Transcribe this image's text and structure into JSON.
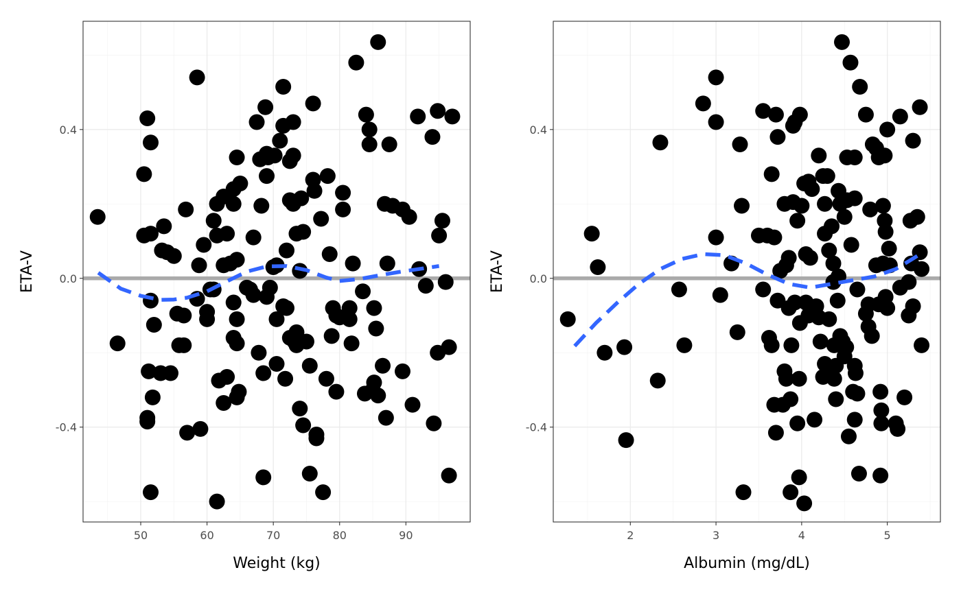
{
  "chart_data": [
    {
      "type": "scatter",
      "title": "",
      "xlabel": "Weight (kg)",
      "ylabel": "ETA-V",
      "xlim": [
        41.3,
        99.7
      ],
      "ylim": [
        -0.655,
        0.691
      ],
      "x_ticks": [
        50,
        60,
        70,
        80,
        90
      ],
      "x_tick_labels": [
        "50",
        "60",
        "70",
        "80",
        "90"
      ],
      "y_ticks": [
        0.4,
        0.0,
        -0.4
      ],
      "y_tick_labels": [
        "0.4",
        "0.0",
        "-0.4"
      ],
      "grid": true,
      "reference_line": {
        "y": 0,
        "color": "#aaaaaa"
      },
      "smooth_color": "#3366ff",
      "point_color": "#000000",
      "smooth": {
        "x": [
          43.6,
          47,
          50,
          53,
          55,
          57,
          60,
          63,
          66,
          69,
          72,
          75,
          78,
          80,
          83,
          86,
          89,
          92,
          95
        ],
        "y": [
          0.015,
          -0.028,
          -0.047,
          -0.058,
          -0.057,
          -0.052,
          -0.035,
          -0.008,
          0.018,
          0.032,
          0.033,
          0.022,
          0.002,
          -0.007,
          -0.002,
          0.008,
          0.017,
          0.025,
          0.033
        ]
      },
      "points": [
        [
          43.5,
          0.165
        ],
        [
          46.5,
          -0.175
        ],
        [
          50.5,
          0.115
        ],
        [
          50.5,
          0.28
        ],
        [
          51,
          0.43
        ],
        [
          51.5,
          0.365
        ],
        [
          51.5,
          0.12
        ],
        [
          51.5,
          -0.06
        ],
        [
          51.2,
          -0.25
        ],
        [
          51,
          -0.375
        ],
        [
          51,
          -0.385
        ],
        [
          51.8,
          -0.32
        ],
        [
          51.5,
          -0.575
        ],
        [
          52,
          -0.125
        ],
        [
          53,
          -0.255
        ],
        [
          53.2,
          0.075
        ],
        [
          53.5,
          0.14
        ],
        [
          54,
          0.07
        ],
        [
          54.5,
          -0.255
        ],
        [
          55,
          0.06
        ],
        [
          55.5,
          -0.095
        ],
        [
          55.8,
          -0.18
        ],
        [
          56.5,
          -0.1
        ],
        [
          56.5,
          -0.18
        ],
        [
          56.8,
          0.185
        ],
        [
          57,
          -0.415
        ],
        [
          58.5,
          -0.055
        ],
        [
          58.5,
          0.54
        ],
        [
          58.8,
          0.035
        ],
        [
          59,
          -0.405
        ],
        [
          59.5,
          0.09
        ],
        [
          60,
          -0.11
        ],
        [
          60,
          -0.09
        ],
        [
          60.5,
          -0.03
        ],
        [
          61,
          -0.03
        ],
        [
          61,
          0.155
        ],
        [
          61.5,
          0.115
        ],
        [
          61.5,
          0.2
        ],
        [
          61.5,
          -0.6
        ],
        [
          61.8,
          -0.275
        ],
        [
          62.5,
          0.035
        ],
        [
          62.5,
          0.22
        ],
        [
          62.5,
          -0.335
        ],
        [
          63,
          -0.265
        ],
        [
          63,
          0.12
        ],
        [
          63.5,
          0.04
        ],
        [
          64,
          0.24
        ],
        [
          64,
          0.2
        ],
        [
          64,
          -0.065
        ],
        [
          64,
          -0.16
        ],
        [
          64.5,
          -0.175
        ],
        [
          64.5,
          0.05
        ],
        [
          64.5,
          0.325
        ],
        [
          64.5,
          -0.11
        ],
        [
          64.5,
          -0.32
        ],
        [
          64.8,
          -0.305
        ],
        [
          65,
          0.255
        ],
        [
          66,
          -0.025
        ],
        [
          66.5,
          -0.03
        ],
        [
          67,
          0.11
        ],
        [
          67,
          -0.045
        ],
        [
          67.5,
          0.42
        ],
        [
          67.8,
          -0.2
        ],
        [
          68,
          0.32
        ],
        [
          68.2,
          0.195
        ],
        [
          68.5,
          -0.255
        ],
        [
          68.5,
          -0.535
        ],
        [
          68.8,
          0.46
        ],
        [
          69,
          0.335
        ],
        [
          69,
          0.275
        ],
        [
          69,
          -0.05
        ],
        [
          69.2,
          0.325
        ],
        [
          69.5,
          -0.025
        ],
        [
          70,
          0.03
        ],
        [
          70.2,
          0.33
        ],
        [
          70.5,
          0.035
        ],
        [
          70.5,
          -0.11
        ],
        [
          70.5,
          -0.23
        ],
        [
          71,
          0.37
        ],
        [
          71.5,
          0.41
        ],
        [
          71.5,
          0.515
        ],
        [
          71.5,
          -0.075
        ],
        [
          71.8,
          -0.27
        ],
        [
          72,
          0.075
        ],
        [
          72,
          -0.08
        ],
        [
          72.5,
          0.315
        ],
        [
          72.5,
          0.21
        ],
        [
          72.5,
          -0.16
        ],
        [
          73,
          0.2
        ],
        [
          73,
          0.33
        ],
        [
          73,
          0.42
        ],
        [
          73.2,
          -0.17
        ],
        [
          73.5,
          0.12
        ],
        [
          73.5,
          -0.18
        ],
        [
          73.5,
          -0.145
        ],
        [
          74,
          0.02
        ],
        [
          74,
          -0.35
        ],
        [
          74.2,
          0.215
        ],
        [
          74.5,
          0.125
        ],
        [
          74.5,
          -0.395
        ],
        [
          75,
          -0.17
        ],
        [
          75.5,
          -0.235
        ],
        [
          75.5,
          -0.525
        ],
        [
          76,
          0.47
        ],
        [
          76,
          0.265
        ],
        [
          76.2,
          0.235
        ],
        [
          76.5,
          -0.42
        ],
        [
          76.5,
          -0.43
        ],
        [
          77.2,
          0.16
        ],
        [
          77.5,
          -0.575
        ],
        [
          78,
          -0.27
        ],
        [
          78.2,
          0.275
        ],
        [
          78.5,
          0.065
        ],
        [
          78.8,
          -0.155
        ],
        [
          79,
          -0.08
        ],
        [
          79.5,
          -0.1
        ],
        [
          79.5,
          -0.305
        ],
        [
          80,
          -0.105
        ],
        [
          80.5,
          0.23
        ],
        [
          80.5,
          0.185
        ],
        [
          81.5,
          -0.08
        ],
        [
          81.5,
          -0.11
        ],
        [
          81.8,
          -0.175
        ],
        [
          82,
          0.04
        ],
        [
          82.5,
          0.58
        ],
        [
          83.5,
          -0.035
        ],
        [
          83.8,
          -0.31
        ],
        [
          84,
          0.44
        ],
        [
          84.5,
          0.36
        ],
        [
          84.5,
          0.4
        ],
        [
          85,
          -0.3
        ],
        [
          85.2,
          -0.28
        ],
        [
          85.2,
          -0.08
        ],
        [
          85.5,
          -0.135
        ],
        [
          85.8,
          -0.315
        ],
        [
          85.8,
          0.635
        ],
        [
          86.5,
          -0.235
        ],
        [
          86.8,
          0.2
        ],
        [
          87,
          -0.375
        ],
        [
          87.2,
          0.04
        ],
        [
          87.5,
          0.36
        ],
        [
          88,
          0.195
        ],
        [
          89.5,
          0.185
        ],
        [
          89.5,
          -0.25
        ],
        [
          90.5,
          0.165
        ],
        [
          91,
          -0.34
        ],
        [
          91.8,
          0.435
        ],
        [
          92,
          0.025
        ],
        [
          93,
          -0.02
        ],
        [
          94,
          0.38
        ],
        [
          94.2,
          -0.39
        ],
        [
          94.8,
          0.45
        ],
        [
          94.8,
          -0.2
        ],
        [
          95,
          0.115
        ],
        [
          95.5,
          0.155
        ],
        [
          96,
          -0.01
        ],
        [
          96.5,
          -0.185
        ],
        [
          96.5,
          -0.53
        ],
        [
          97,
          0.435
        ]
      ]
    },
    {
      "type": "scatter",
      "title": "",
      "xlabel": "Albumin (mg/dL)",
      "ylabel": "ETA-V",
      "xlim": [
        1.1,
        5.62
      ],
      "ylim": [
        -0.655,
        0.691
      ],
      "x_ticks": [
        2,
        3,
        4,
        5
      ],
      "x_tick_labels": [
        "2",
        "3",
        "4",
        "5"
      ],
      "y_ticks": [
        0.4,
        0.0,
        -0.4
      ],
      "y_tick_labels": [
        "0.4",
        "0.0",
        "-0.4"
      ],
      "grid": true,
      "reference_line": {
        "y": 0,
        "color": "#aaaaaa"
      },
      "smooth_color": "#3366ff",
      "point_color": "#000000",
      "smooth": {
        "x": [
          1.35,
          1.6,
          1.85,
          2.1,
          2.35,
          2.6,
          2.85,
          3.1,
          3.35,
          3.6,
          3.85,
          4.1,
          4.35,
          4.6,
          4.85,
          5.1,
          5.35
        ],
        "y": [
          -0.182,
          -0.12,
          -0.065,
          -0.015,
          0.025,
          0.052,
          0.065,
          0.062,
          0.04,
          0.01,
          -0.015,
          -0.025,
          -0.015,
          -0.005,
          0.005,
          0.025,
          0.06
        ]
      },
      "points": [
        [
          1.27,
          -0.11
        ],
        [
          1.55,
          0.12
        ],
        [
          1.62,
          0.03
        ],
        [
          1.7,
          -0.2
        ],
        [
          1.93,
          -0.185
        ],
        [
          1.95,
          -0.435
        ],
        [
          2.32,
          -0.275
        ],
        [
          2.35,
          0.365
        ],
        [
          2.57,
          -0.03
        ],
        [
          2.63,
          -0.18
        ],
        [
          2.85,
          0.47
        ],
        [
          3,
          0.54
        ],
        [
          3,
          0.42
        ],
        [
          3,
          0.11
        ],
        [
          3.05,
          -0.045
        ],
        [
          3.18,
          0.04
        ],
        [
          3.25,
          -0.145
        ],
        [
          3.28,
          0.36
        ],
        [
          3.3,
          0.195
        ],
        [
          3.32,
          -0.575
        ],
        [
          3.5,
          0.115
        ],
        [
          3.55,
          0.45
        ],
        [
          3.55,
          -0.03
        ],
        [
          3.6,
          0.115
        ],
        [
          3.62,
          -0.16
        ],
        [
          3.65,
          0.28
        ],
        [
          3.65,
          -0.18
        ],
        [
          3.68,
          0.11
        ],
        [
          3.68,
          -0.34
        ],
        [
          3.7,
          0.44
        ],
        [
          3.7,
          -0.415
        ],
        [
          3.72,
          -0.06
        ],
        [
          3.72,
          0.38
        ],
        [
          3.75,
          0.02
        ],
        [
          3.78,
          -0.34
        ],
        [
          3.8,
          0.2
        ],
        [
          3.8,
          -0.25
        ],
        [
          3.82,
          0.035
        ],
        [
          3.82,
          -0.27
        ],
        [
          3.85,
          0.055
        ],
        [
          3.85,
          -0.08
        ],
        [
          3.87,
          -0.325
        ],
        [
          3.87,
          -0.575
        ],
        [
          3.88,
          -0.18
        ],
        [
          3.9,
          0.41
        ],
        [
          3.9,
          0.205
        ],
        [
          3.92,
          -0.065
        ],
        [
          3.92,
          0.42
        ],
        [
          3.95,
          0.155
        ],
        [
          3.95,
          -0.39
        ],
        [
          3.97,
          -0.27
        ],
        [
          3.97,
          -0.535
        ],
        [
          3.98,
          0.44
        ],
        [
          3.98,
          -0.12
        ],
        [
          4,
          0.195
        ],
        [
          4.03,
          -0.605
        ],
        [
          4.03,
          0.255
        ],
        [
          4.05,
          -0.065
        ],
        [
          4.05,
          0.065
        ],
        [
          4.08,
          0.26
        ],
        [
          4.08,
          -0.1
        ],
        [
          4.1,
          -0.08
        ],
        [
          4.1,
          0.055
        ],
        [
          4.12,
          0.24
        ],
        [
          4.15,
          -0.38
        ],
        [
          4.17,
          -0.075
        ],
        [
          4.2,
          0.33
        ],
        [
          4.2,
          -0.105
        ],
        [
          4.22,
          -0.17
        ],
        [
          4.25,
          0.275
        ],
        [
          4.25,
          -0.265
        ],
        [
          4.27,
          0.12
        ],
        [
          4.27,
          0.2
        ],
        [
          4.27,
          -0.23
        ],
        [
          4.3,
          0.275
        ],
        [
          4.32,
          -0.11
        ],
        [
          4.32,
          0.075
        ],
        [
          4.33,
          -0.26
        ],
        [
          4.35,
          0.14
        ],
        [
          4.35,
          -0.24
        ],
        [
          4.37,
          0.04
        ],
        [
          4.37,
          -0.01
        ],
        [
          4.38,
          -0.18
        ],
        [
          4.38,
          -0.27
        ],
        [
          4.4,
          -0.235
        ],
        [
          4.4,
          -0.325
        ],
        [
          4.42,
          -0.06
        ],
        [
          4.43,
          0.235
        ],
        [
          4.43,
          0.005
        ],
        [
          4.45,
          -0.155
        ],
        [
          4.45,
          0.2
        ],
        [
          4.47,
          0.635
        ],
        [
          4.48,
          -0.17
        ],
        [
          4.5,
          -0.21
        ],
        [
          4.5,
          0.165
        ],
        [
          4.52,
          -0.185
        ],
        [
          4.53,
          0.325
        ],
        [
          4.53,
          0.21
        ],
        [
          4.55,
          -0.425
        ],
        [
          4.57,
          0.58
        ],
        [
          4.58,
          0.09
        ],
        [
          4.6,
          -0.305
        ],
        [
          4.62,
          -0.38
        ],
        [
          4.62,
          -0.235
        ],
        [
          4.62,
          0.325
        ],
        [
          4.62,
          0.215
        ],
        [
          4.63,
          -0.255
        ],
        [
          4.65,
          -0.03
        ],
        [
          4.65,
          -0.31
        ],
        [
          4.67,
          -0.525
        ],
        [
          4.68,
          0.515
        ],
        [
          4.75,
          -0.095
        ],
        [
          4.75,
          0.44
        ],
        [
          4.78,
          -0.07
        ],
        [
          4.78,
          -0.13
        ],
        [
          4.8,
          0.185
        ],
        [
          4.82,
          -0.155
        ],
        [
          4.83,
          0.36
        ],
        [
          4.87,
          0.35
        ],
        [
          4.87,
          0.035
        ],
        [
          4.9,
          0.325
        ],
        [
          4.9,
          -0.07
        ],
        [
          4.92,
          -0.53
        ],
        [
          4.92,
          -0.305
        ],
        [
          4.93,
          -0.39
        ],
        [
          4.93,
          -0.355
        ],
        [
          4.95,
          0.195
        ],
        [
          4.95,
          0.04
        ],
        [
          4.97,
          0.155
        ],
        [
          4.97,
          0.33
        ],
        [
          4.98,
          0.125
        ],
        [
          4.98,
          -0.05
        ],
        [
          5,
          0.4
        ],
        [
          5,
          -0.08
        ],
        [
          5.02,
          0.08
        ],
        [
          5.03,
          0.035
        ],
        [
          5.1,
          -0.39
        ],
        [
          5.12,
          -0.405
        ],
        [
          5.15,
          0.435
        ],
        [
          5.15,
          -0.025
        ],
        [
          5.2,
          -0.32
        ],
        [
          5.25,
          -0.01
        ],
        [
          5.25,
          -0.1
        ],
        [
          5.27,
          0.155
        ],
        [
          5.28,
          0.04
        ],
        [
          5.3,
          -0.075
        ],
        [
          5.3,
          0.37
        ],
        [
          5.35,
          0.165
        ],
        [
          5.38,
          0.46
        ],
        [
          5.38,
          0.07
        ],
        [
          5.4,
          0.025
        ],
        [
          5.4,
          -0.18
        ]
      ]
    }
  ]
}
